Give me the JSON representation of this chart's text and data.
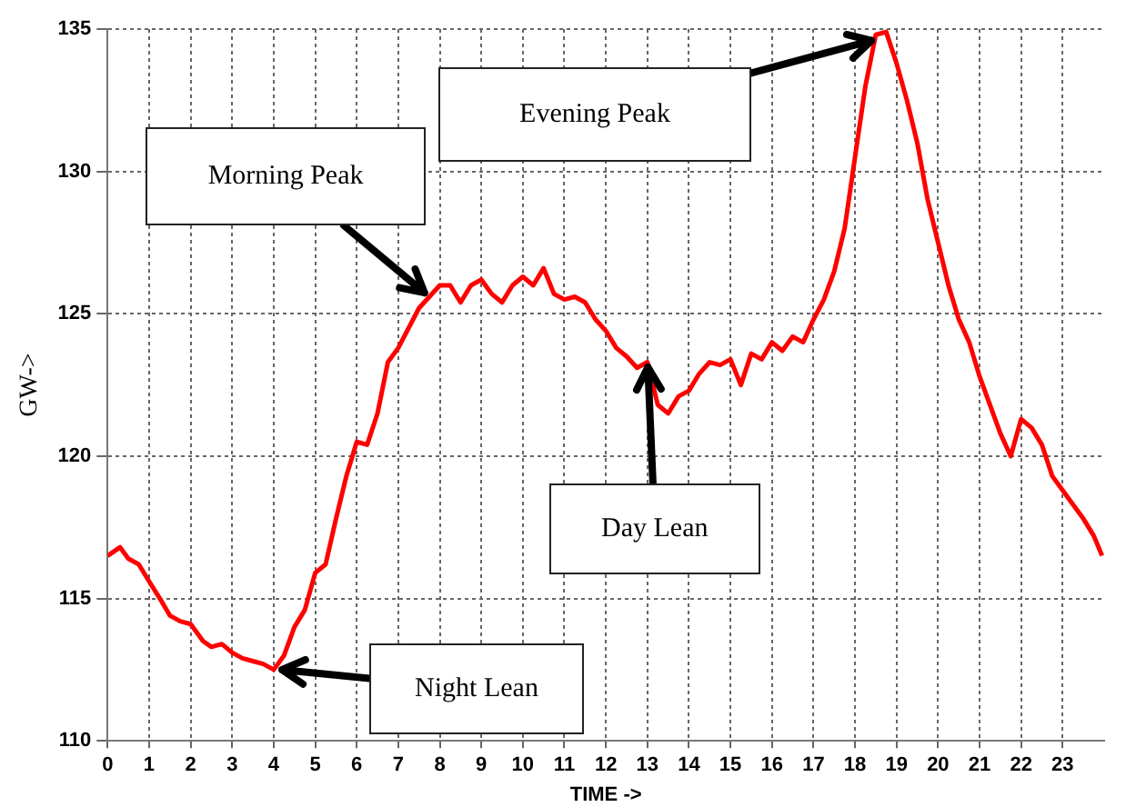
{
  "chart_data": {
    "type": "line",
    "xlabel": "TIME ->",
    "ylabel": "GW->",
    "x": [
      0,
      0.3,
      0.5,
      0.75,
      1,
      1.3,
      1.5,
      1.75,
      2,
      2.3,
      2.5,
      2.75,
      3,
      3.25,
      3.5,
      3.75,
      4,
      4.25,
      4.5,
      4.75,
      5,
      5.25,
      5.5,
      5.75,
      6,
      6.25,
      6.5,
      6.75,
      7,
      7.25,
      7.5,
      7.75,
      8,
      8.25,
      8.5,
      8.75,
      9,
      9.25,
      9.5,
      9.75,
      10,
      10.25,
      10.5,
      10.75,
      11,
      11.25,
      11.5,
      11.75,
      12,
      12.25,
      12.5,
      12.75,
      13,
      13.25,
      13.5,
      13.75,
      14,
      14.25,
      14.5,
      14.75,
      15,
      15.25,
      15.5,
      15.75,
      16,
      16.25,
      16.5,
      16.75,
      17,
      17.25,
      17.5,
      17.75,
      18,
      18.25,
      18.5,
      18.75,
      19,
      19.25,
      19.5,
      19.75,
      20,
      20.25,
      20.5,
      20.75,
      21,
      21.25,
      21.5,
      21.75,
      22,
      22.25,
      22.5,
      22.75,
      23,
      23.25,
      23.5,
      23.75,
      23.95
    ],
    "series": [
      {
        "color": "#ff0000",
        "values": [
          116.5,
          116.8,
          116.4,
          116.2,
          115.6,
          114.9,
          114.4,
          114.2,
          114.1,
          113.5,
          113.3,
          113.4,
          113.1,
          112.9,
          112.8,
          112.7,
          112.5,
          113.0,
          114.0,
          114.6,
          115.9,
          116.2,
          117.8,
          119.3,
          120.5,
          120.4,
          121.5,
          123.3,
          123.8,
          124.5,
          125.2,
          125.6,
          126.0,
          126.0,
          125.4,
          126.0,
          126.2,
          125.7,
          125.4,
          126.0,
          126.3,
          126.0,
          126.6,
          125.7,
          125.5,
          125.6,
          125.4,
          124.8,
          124.4,
          123.8,
          123.5,
          123.1,
          123.3,
          121.8,
          121.5,
          122.1,
          122.3,
          122.9,
          123.3,
          123.2,
          123.4,
          122.5,
          123.6,
          123.4,
          124.0,
          123.7,
          124.2,
          124.0,
          124.8,
          125.5,
          126.5,
          128.0,
          130.5,
          133.0,
          134.8,
          134.9,
          133.8,
          132.5,
          131.0,
          129.0,
          127.5,
          126.0,
          124.8,
          124.0,
          122.8,
          121.8,
          120.8,
          120.0,
          121.3,
          121.0,
          120.4,
          119.3,
          118.8,
          118.3,
          117.8,
          117.2,
          116.5
        ]
      }
    ],
    "xlim": [
      0,
      24
    ],
    "xticks": [
      0,
      1,
      2,
      3,
      4,
      5,
      6,
      7,
      8,
      9,
      10,
      11,
      12,
      13,
      14,
      15,
      16,
      17,
      18,
      19,
      20,
      21,
      22,
      23
    ],
    "ylim": [
      110,
      135
    ],
    "yticks": [
      110,
      115,
      120,
      125,
      130,
      135
    ],
    "grid": true,
    "legend": false,
    "marker": "none",
    "line_style": "solid",
    "annotations": [
      {
        "text": "Morning Peak",
        "x": 7.75,
        "y": 125.6
      },
      "Evening Peak",
      {
        "text": "Day Lean",
        "x": 13,
        "y": 123.3
      },
      "Night Lean"
    ]
  }
}
